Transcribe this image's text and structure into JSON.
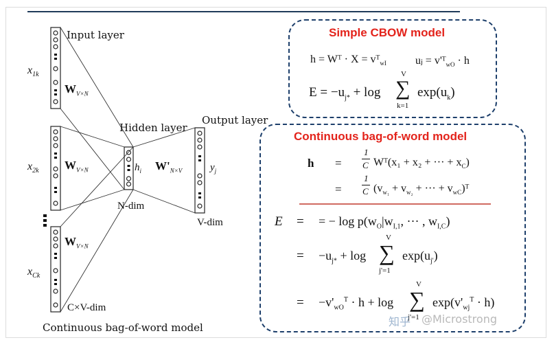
{
  "diagram": {
    "input_label": "Input layer",
    "hidden_label": "Hidden layer",
    "output_label": "Output layer",
    "x1": "x",
    "x1_sub": "1k",
    "x2": "x",
    "x2_sub": "2k",
    "xc": "x",
    "xc_sub": "Ck",
    "w_input_1": "W",
    "w_input_1_sub": "V×N",
    "w_input_2": "W",
    "w_input_2_sub": "V×N",
    "w_input_3": "W",
    "w_input_3_sub": "V×N",
    "w_output": "W'",
    "w_output_sub": "N×V",
    "h_label": "h",
    "h_sub": "i",
    "y_label": "y",
    "y_sub": "j",
    "n_dim": "N-dim",
    "v_dim": "V-dim",
    "cv_dim": "C×V-dim",
    "caption": "Continuous bag-of-word model"
  },
  "simple_box": {
    "title": "Simple CBOW model",
    "eq_h": "h = Wᵀ · X = vᵀ",
    "eq_h_sub": "wI",
    "eq_u": "uⱼ = v'ᵀ",
    "eq_u_sub": "wO",
    "eq_u_tail": "· h",
    "eq_E_left": "E = −u",
    "eq_E_left_sub": "j*",
    "eq_E_mid": "+ log",
    "sum_top": "V",
    "sum_bot": "k=1",
    "eq_E_right": "exp(u",
    "eq_E_right_sub": "k",
    "eq_E_close": ")"
  },
  "cont_box": {
    "title": "Continuous bag-of-word model",
    "h1_left": "h",
    "h1_eq": "=",
    "frac_num": "1",
    "frac_den": "C",
    "h1_right": "Wᵀ(x₁ + x₂ + ··· + x",
    "h1_right_sub": "C",
    "h1_close": ")",
    "h2_eq": "=",
    "h2_right": "(v",
    "h2_w1": "w₁",
    "h2_plus1": " + v",
    "h2_w2": "w₂",
    "h2_mid": " + ··· + v",
    "h2_wc": "wC",
    "h2_close": ")ᵀ",
    "e_label": "E",
    "e1_eq": "=",
    "e1_rhs": "= − log p(w",
    "e1_rhs_sub": "O",
    "e1_rhs_mid": "|w",
    "e1_rhs_sub2": "I,1",
    "e1_rhs_mid2": ", ··· , w",
    "e1_rhs_sub3": "I,C",
    "e1_rhs_close": ")",
    "e2_eq": "=",
    "e2_rhs_a": "−u",
    "e2_rhs_a_sub": "j*",
    "e2_rhs_b": "+ log",
    "sum2_top": "V",
    "sum2_bot": "j'=1",
    "e2_rhs_c": "exp(u",
    "e2_rhs_c_sub": "j'",
    "e2_rhs_close": ")",
    "e3_eq": "=",
    "e3_rhs_a": "−v'",
    "e3_rhs_a_sub": "wO",
    "e3_rhs_a_sup": "T",
    "e3_rhs_b": "· h + log",
    "sum3_top": "V",
    "sum3_bot": "j'=1",
    "e3_rhs_c": "exp(v'",
    "e3_rhs_c_sub": "wj",
    "e3_rhs_c_sup": "T",
    "e3_rhs_close": "· h)"
  },
  "watermark": {
    "zhihu": "知乎",
    "handle": "@Microstrong"
  },
  "colors": {
    "accent_red": "#e3231b",
    "box_border": "#1d3f6b",
    "rule_red": "#c0392b"
  }
}
